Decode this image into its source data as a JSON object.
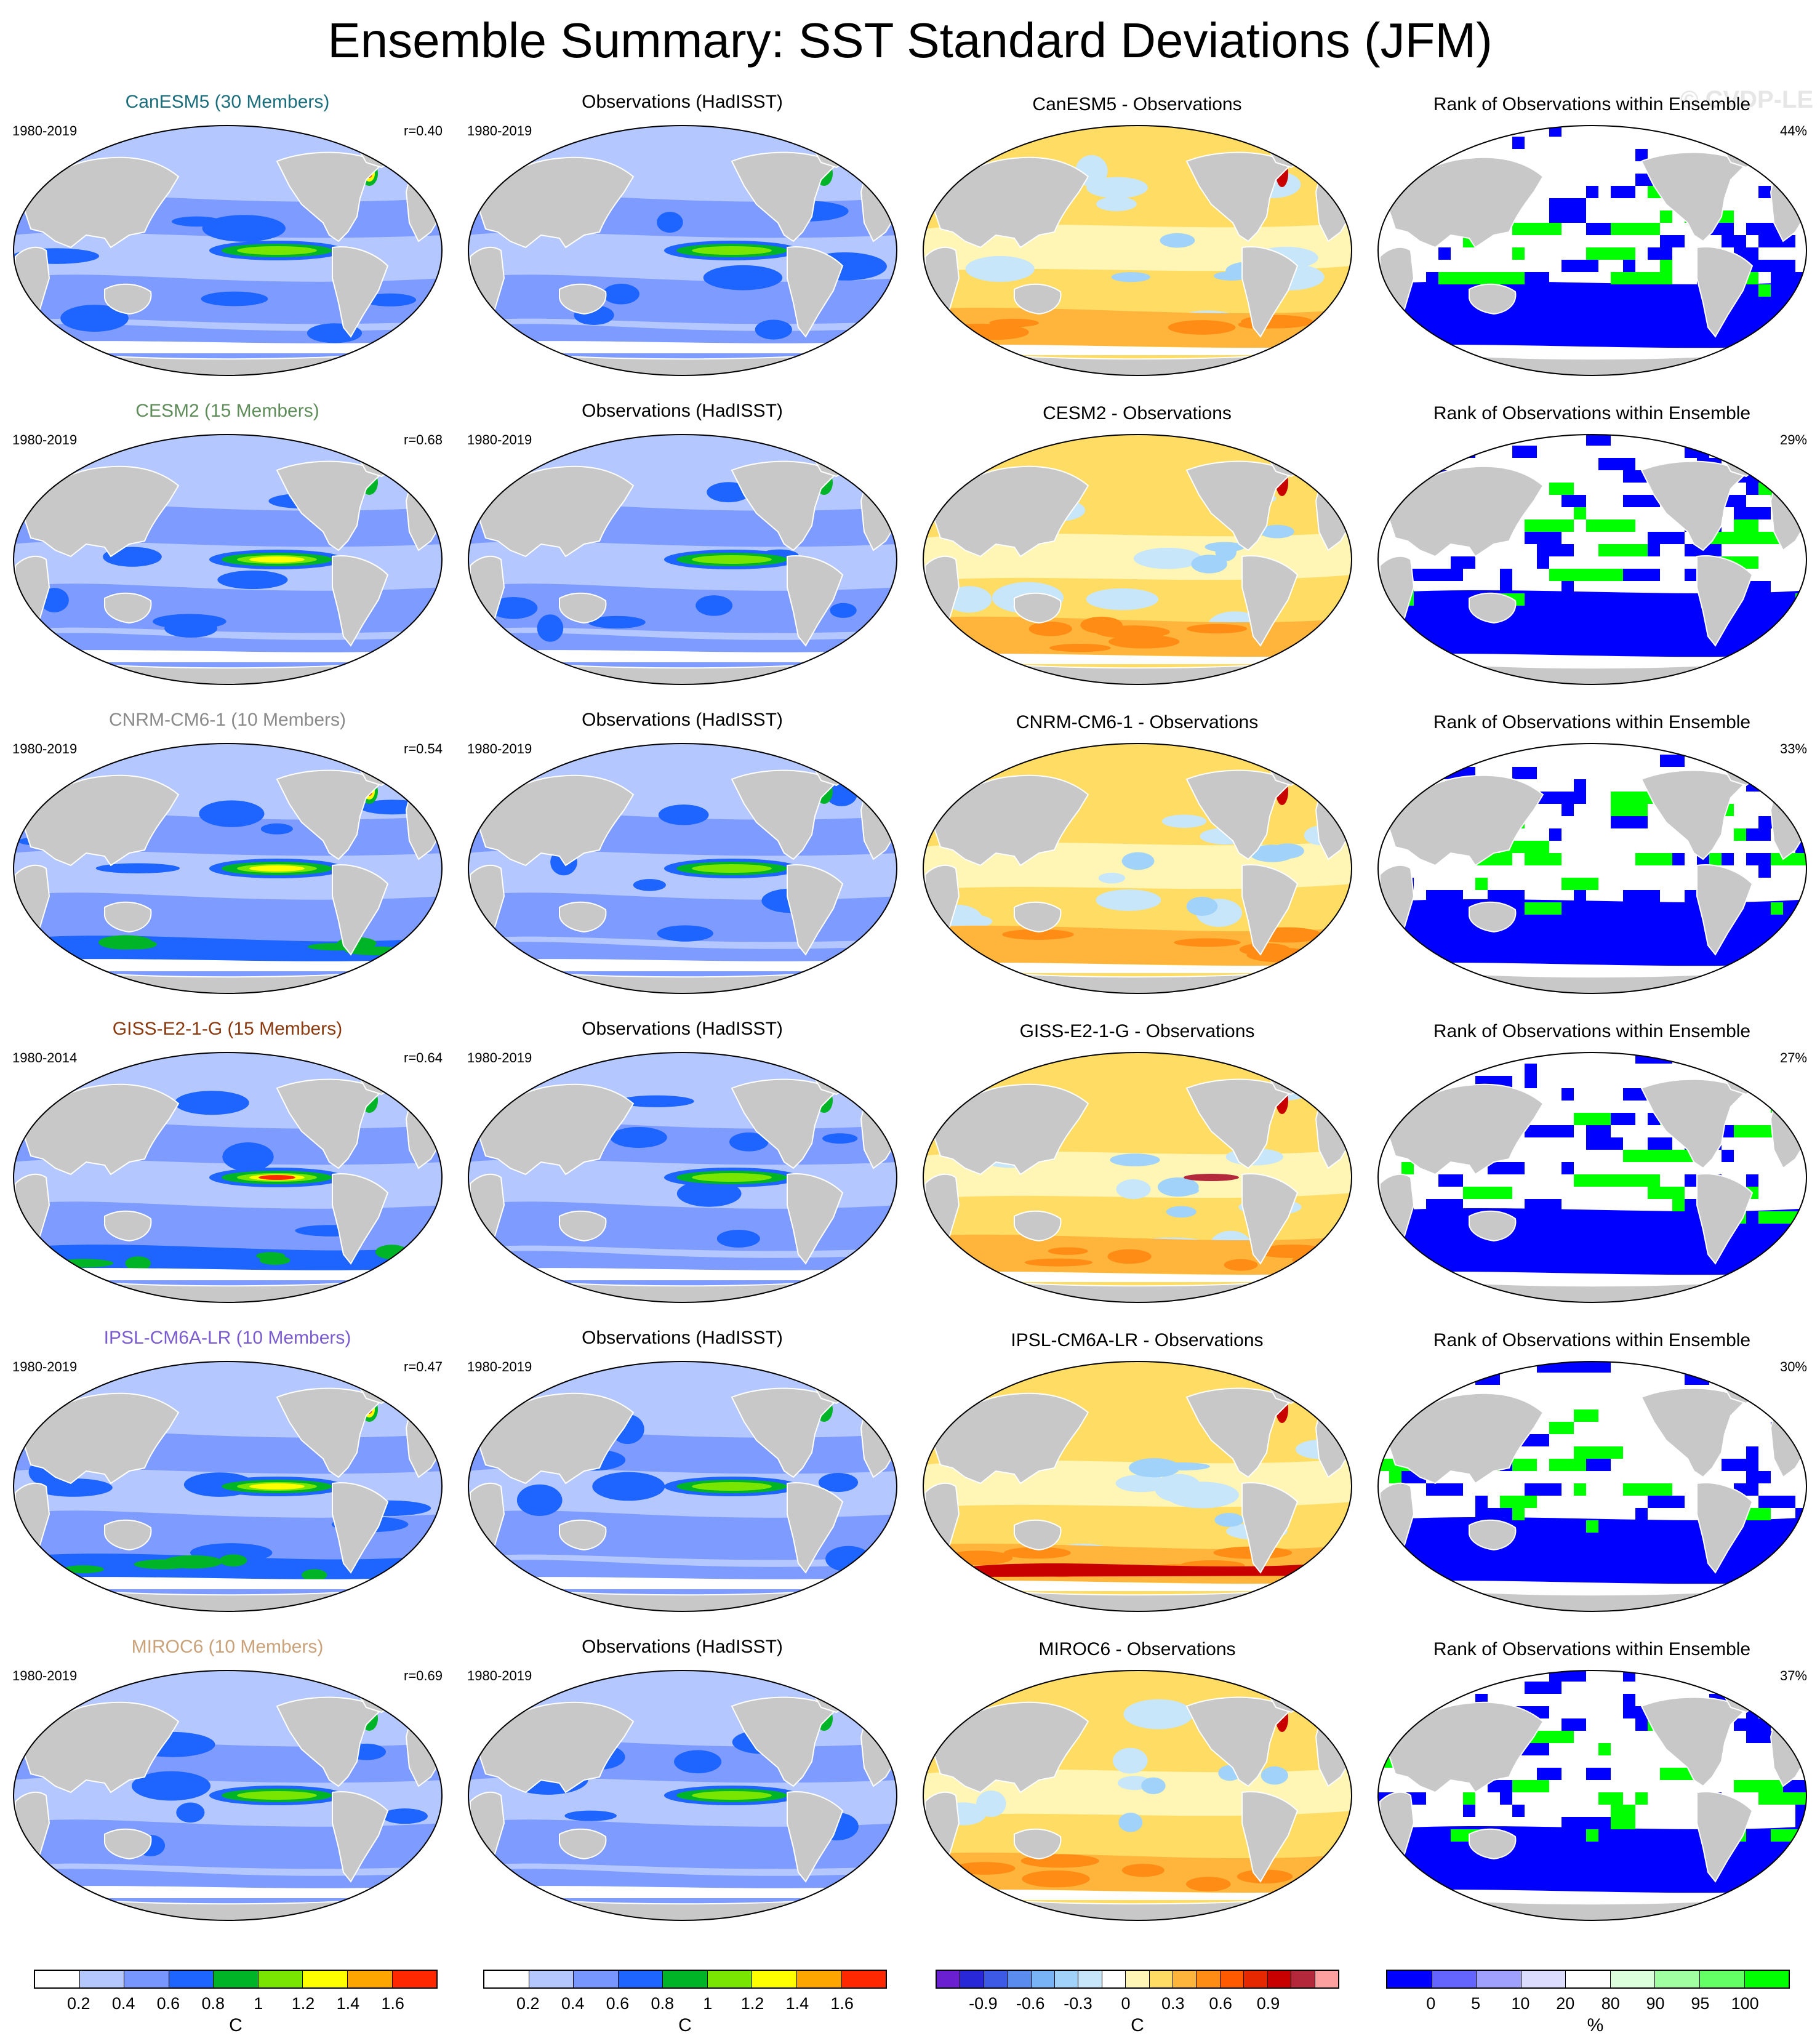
{
  "title": "Ensemble Summary: SST Standard Deviations (JFM)",
  "watermark": "© CVDP-LE",
  "column_titles": {
    "obs": "Observations (HadISST)",
    "rank": "Rank of Observations within Ensemble"
  },
  "rows": [
    {
      "model_title": "CanESM5 (30 Members)",
      "model_color": "#1a6e7c",
      "model_period": "1980-2019",
      "r": "r=0.40",
      "obs_period": "1980-2019",
      "diff_title": "CanESM5 - Observations",
      "rank_pct": "44%",
      "style": 0
    },
    {
      "model_title": "CESM2 (15 Members)",
      "model_color": "#5f8d5a",
      "model_period": "1980-2019",
      "r": "r=0.68",
      "obs_period": "1980-2019",
      "diff_title": "CESM2 - Observations",
      "rank_pct": "29%",
      "style": 1
    },
    {
      "model_title": "CNRM-CM6-1 (10 Members)",
      "model_color": "#8a8a8a",
      "model_period": "1980-2019",
      "r": "r=0.54",
      "obs_period": "1980-2019",
      "diff_title": "CNRM-CM6-1 - Observations",
      "rank_pct": "33%",
      "style": 2
    },
    {
      "model_title": "GISS-E2-1-G (15 Members)",
      "model_color": "#8b3a0f",
      "model_period": "1980-2014",
      "r": "r=0.64",
      "obs_period": "1980-2019",
      "diff_title": "GISS-E2-1-G - Observations",
      "rank_pct": "27%",
      "style": 3
    },
    {
      "model_title": "IPSL-CM6A-LR (10 Members)",
      "model_color": "#7a5ccf",
      "model_period": "1980-2019",
      "r": "r=0.47",
      "obs_period": "1980-2019",
      "diff_title": "IPSL-CM6A-LR - Observations",
      "rank_pct": "30%",
      "style": 4
    },
    {
      "model_title": "MIROC6 (10 Members)",
      "model_color": "#c9a27a",
      "model_period": "1980-2019",
      "r": "r=0.69",
      "obs_period": "1980-2019",
      "diff_title": "MIROC6 - Observations",
      "rank_pct": "37%",
      "style": 5
    }
  ],
  "colorbars": [
    {
      "unit": "C",
      "colors": [
        "#ffffff",
        "#b4c8ff",
        "#7896ff",
        "#1e64ff",
        "#00b428",
        "#78e600",
        "#ffff00",
        "#ffa500",
        "#ff2800"
      ],
      "ticks": [
        "0.2",
        "0.4",
        "0.6",
        "0.8",
        "1",
        "1.2",
        "1.4",
        "1.6"
      ]
    },
    {
      "unit": "C",
      "colors": [
        "#ffffff",
        "#b4c8ff",
        "#7896ff",
        "#1e64ff",
        "#00b428",
        "#78e600",
        "#ffff00",
        "#ffa500",
        "#ff2800"
      ],
      "ticks": [
        "0.2",
        "0.4",
        "0.6",
        "0.8",
        "1",
        "1.2",
        "1.4",
        "1.6"
      ]
    },
    {
      "unit": "C",
      "colors": [
        "#6a1fd0",
        "#2828d8",
        "#3c5ae6",
        "#5a8cf0",
        "#78b4f5",
        "#a0d2fa",
        "#c8e6fa",
        "#ffffff",
        "#fff5b4",
        "#ffdc64",
        "#ffb43c",
        "#ff8c14",
        "#ff5a00",
        "#e62800",
        "#c80000",
        "#b4283c",
        "#ffa0a0"
      ],
      "ticks": [
        "-0.9",
        "-0.6",
        "-0.3",
        "0",
        "0.3",
        "0.6",
        "0.9"
      ]
    },
    {
      "unit": "%",
      "colors": [
        "#0000ff",
        "#6464ff",
        "#a0a0ff",
        "#dcdcff",
        "#ffffff",
        "#dcffdc",
        "#a0ffa0",
        "#64ff64",
        "#00ff00"
      ],
      "ticks": [
        "0",
        "5",
        "10",
        "20",
        "80",
        "90",
        "95",
        "100"
      ]
    }
  ],
  "colorbar_tick_fracs": [
    [
      0.111,
      0.222,
      0.333,
      0.444,
      0.556,
      0.667,
      0.778,
      0.889
    ],
    [
      0.111,
      0.222,
      0.333,
      0.444,
      0.556,
      0.667,
      0.778,
      0.889
    ],
    [
      0.118,
      0.235,
      0.353,
      0.471,
      0.588,
      0.706,
      0.824
    ],
    [
      0.111,
      0.222,
      0.333,
      0.444,
      0.556,
      0.667,
      0.778,
      0.889
    ]
  ],
  "icons": {
    "map": "world-map-robinson"
  }
}
